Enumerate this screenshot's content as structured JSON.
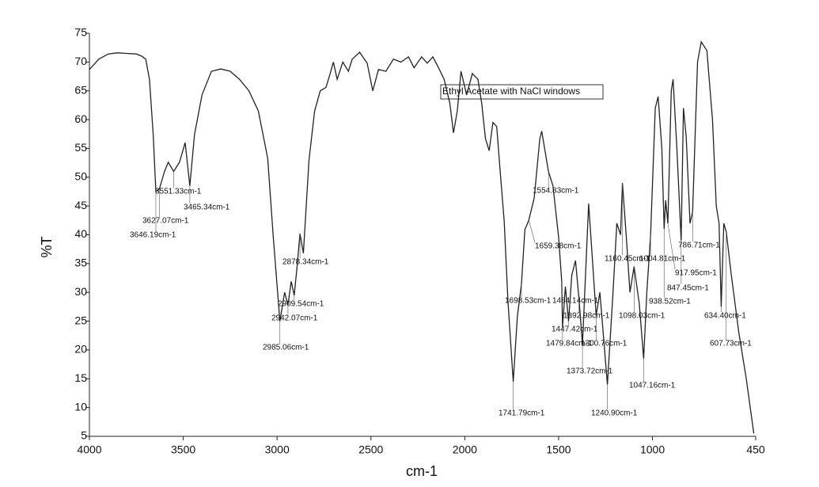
{
  "chart_data": {
    "type": "line",
    "xlabel": "cm-1",
    "ylabel": "%T",
    "legend_text": "Ethyl Acetate with NaCl windows",
    "xlim": [
      4000,
      450
    ],
    "ylim": [
      5,
      75
    ],
    "xticks": [
      4000,
      3500,
      3000,
      2500,
      2000,
      1500,
      1000,
      450
    ],
    "yticks": [
      5,
      10,
      15,
      20,
      25,
      30,
      35,
      40,
      45,
      50,
      55,
      60,
      65,
      70,
      75
    ],
    "series": [
      {
        "name": "Ethyl Acetate with NaCl windows",
        "color": "#222222",
        "x": [
          4000,
          3950,
          3900,
          3850,
          3800,
          3750,
          3720,
          3700,
          3680,
          3660,
          3646,
          3627,
          3600,
          3580,
          3551,
          3520,
          3490,
          3465,
          3440,
          3400,
          3350,
          3300,
          3250,
          3200,
          3150,
          3100,
          3050,
          3020,
          2985,
          2960,
          2942,
          2925,
          2909,
          2895,
          2878,
          2860,
          2830,
          2800,
          2770,
          2740,
          2720,
          2700,
          2680,
          2650,
          2620,
          2600,
          2560,
          2520,
          2490,
          2460,
          2420,
          2380,
          2340,
          2300,
          2270,
          2230,
          2200,
          2170,
          2140,
          2110,
          2080,
          2060,
          2040,
          2020,
          1990,
          1960,
          1930,
          1910,
          1890,
          1870,
          1850,
          1830,
          1810,
          1790,
          1770,
          1742,
          1720,
          1698,
          1680,
          1659,
          1630,
          1600,
          1590,
          1554,
          1530,
          1500,
          1484,
          1479,
          1464,
          1447,
          1430,
          1410,
          1392,
          1373,
          1340,
          1300,
          1280,
          1240,
          1210,
          1190,
          1170,
          1160,
          1140,
          1120,
          1098,
          1070,
          1047,
          1030,
          1010,
          985,
          970,
          950,
          938,
          930,
          918,
          900,
          890,
          870,
          847,
          835,
          820,
          800,
          786,
          760,
          740,
          710,
          680,
          660,
          645,
          634,
          620,
          607,
          580,
          540,
          500,
          460
        ],
        "values": [
          68.7,
          70.5,
          71.4,
          71.6,
          71.5,
          71.4,
          71.0,
          70.5,
          67,
          57.4,
          47.5,
          48,
          51,
          52.6,
          51,
          52.6,
          56,
          48.5,
          57.4,
          64.3,
          68.4,
          68.8,
          68.4,
          67,
          65,
          61.5,
          53.3,
          39.5,
          25,
          30,
          27.8,
          31.9,
          29.5,
          34,
          40.2,
          36.8,
          53,
          61.5,
          65,
          65.6,
          67.7,
          70,
          67,
          70,
          68.4,
          70.5,
          71.7,
          69.8,
          65,
          68.7,
          68.4,
          70.5,
          70,
          70.9,
          69,
          70.9,
          69.8,
          70.9,
          69,
          67,
          62.9,
          57.7,
          61.5,
          68.4,
          64.3,
          68,
          67,
          62.9,
          56.7,
          54.6,
          59.5,
          58.8,
          50.5,
          42.3,
          28.5,
          14.5,
          25.8,
          31.5,
          40.9,
          42.5,
          46.4,
          56.7,
          58,
          51,
          48.5,
          39.5,
          32,
          24,
          31,
          25,
          33,
          35.5,
          29,
          21,
          45.4,
          26,
          30,
          14,
          30,
          42,
          40,
          49,
          40,
          30,
          34.5,
          28,
          18.5,
          30,
          40,
          62,
          64,
          55,
          41,
          46,
          42,
          65,
          67,
          55,
          39,
          62,
          57,
          42,
          44,
          70,
          73.5,
          72,
          60,
          45,
          42,
          27.5,
          42,
          40.5,
          33,
          23,
          15,
          5.5
        ]
      }
    ],
    "annotations": [
      {
        "text": "3551.33cm-1",
        "x": 3551,
        "y": 51
      },
      {
        "text": "3465.34cm-1",
        "x": 3465,
        "y": 48.5
      },
      {
        "text": "3627.07cm-1",
        "x": 3627,
        "y": 48
      },
      {
        "text": "3646.19cm-1",
        "x": 3646,
        "y": 47.5
      },
      {
        "text": "2878.34cm-1",
        "x": 2878,
        "y": 40.2
      },
      {
        "text": "2909.54cm-1",
        "x": 2909,
        "y": 29.5
      },
      {
        "text": "2942.07cm-1",
        "x": 2942,
        "y": 27.8
      },
      {
        "text": "2985.06cm-1",
        "x": 2985,
        "y": 25
      },
      {
        "text": "1554.83cm-1",
        "x": 1554,
        "y": 51
      },
      {
        "text": "1659.38cm-1",
        "x": 1659,
        "y": 42.5
      },
      {
        "text": "1698.53cm-1",
        "x": 1698,
        "y": 31.5
      },
      {
        "text": "1484.14cm-1",
        "x": 1484,
        "y": 32
      },
      {
        "text": "1392.98cm-1",
        "x": 1392,
        "y": 29
      },
      {
        "text": "1447.42cm-1",
        "x": 1447,
        "y": 25
      },
      {
        "text": "1479.84cm-1",
        "x": 1479,
        "y": 24
      },
      {
        "text": "1300.76cm-1",
        "x": 1300,
        "y": 26
      },
      {
        "text": "1373.72cm-1",
        "x": 1373,
        "y": 21
      },
      {
        "text": "1741.79cm-1",
        "x": 1742,
        "y": 14.5
      },
      {
        "text": "1240.90cm-1",
        "x": 1240,
        "y": 14
      },
      {
        "text": "1160.45cm-1",
        "x": 1160,
        "y": 49
      },
      {
        "text": "1004.81cm-1",
        "x": 1010,
        "y": 40
      },
      {
        "text": "917.95cm-1",
        "x": 918,
        "y": 42
      },
      {
        "text": "847.45cm-1",
        "x": 847,
        "y": 39
      },
      {
        "text": "938.52cm-1",
        "x": 938,
        "y": 41
      },
      {
        "text": "1098.03cm-1",
        "x": 1098,
        "y": 34.5
      },
      {
        "text": "1047.16cm-1",
        "x": 1047,
        "y": 18.5
      },
      {
        "text": "786.71cm-1",
        "x": 786,
        "y": 44
      },
      {
        "text": "634.40cm-1",
        "x": 634,
        "y": 27.5
      },
      {
        "text": "607.73cm-1",
        "x": 607,
        "y": 40.5
      }
    ]
  }
}
